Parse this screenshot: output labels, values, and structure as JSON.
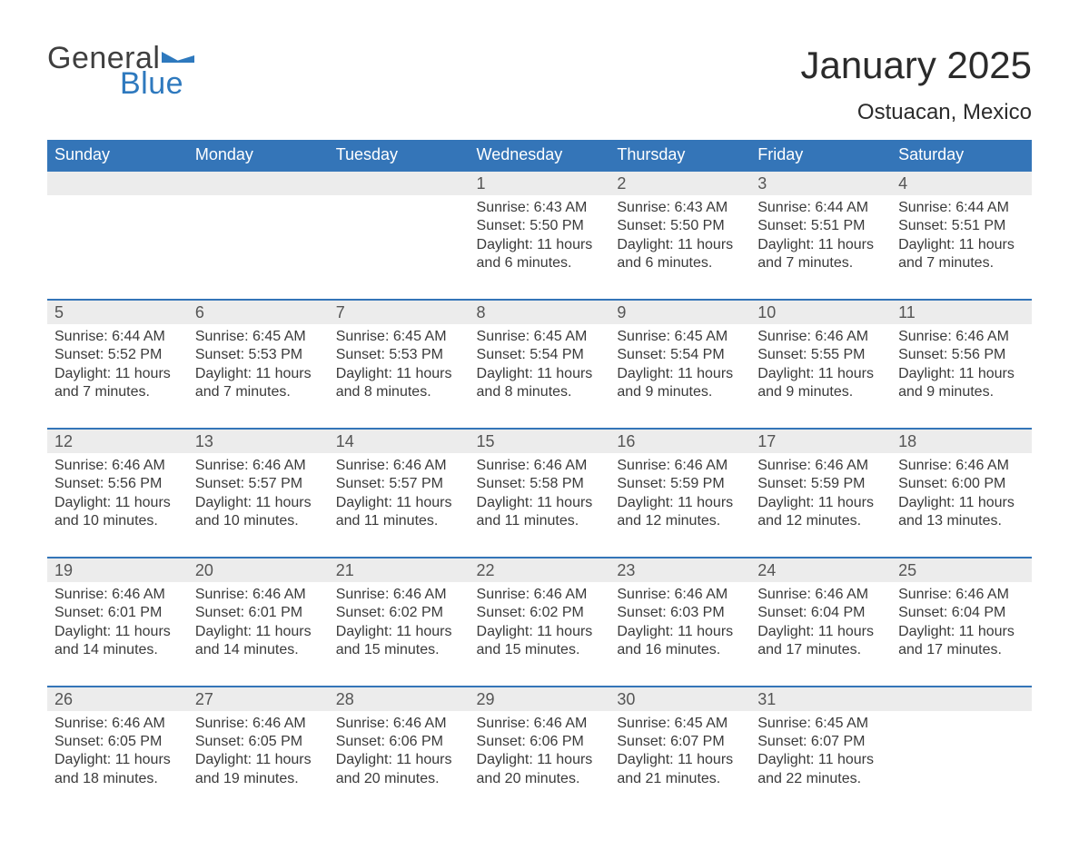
{
  "logo": {
    "text1": "General",
    "text2": "Blue",
    "flag_color": "#2e79be",
    "text1_color": "#3f3f3f"
  },
  "title": "January 2025",
  "location": "Ostuacan, Mexico",
  "colors": {
    "header_bg": "#3475b8",
    "header_text": "#ffffff",
    "week_border": "#3475b8",
    "daynum_bg": "#ececec",
    "body_text": "#3a3a3a",
    "page_bg": "#ffffff"
  },
  "fonts": {
    "title_size_pt": 32,
    "location_size_pt": 18,
    "header_size_pt": 14,
    "body_size_pt": 12
  },
  "day_headers": [
    "Sunday",
    "Monday",
    "Tuesday",
    "Wednesday",
    "Thursday",
    "Friday",
    "Saturday"
  ],
  "weeks": [
    [
      null,
      null,
      null,
      {
        "n": "1",
        "sunrise": "Sunrise: 6:43 AM",
        "sunset": "Sunset: 5:50 PM",
        "dl1": "Daylight: 11 hours",
        "dl2": "and 6 minutes."
      },
      {
        "n": "2",
        "sunrise": "Sunrise: 6:43 AM",
        "sunset": "Sunset: 5:50 PM",
        "dl1": "Daylight: 11 hours",
        "dl2": "and 6 minutes."
      },
      {
        "n": "3",
        "sunrise": "Sunrise: 6:44 AM",
        "sunset": "Sunset: 5:51 PM",
        "dl1": "Daylight: 11 hours",
        "dl2": "and 7 minutes."
      },
      {
        "n": "4",
        "sunrise": "Sunrise: 6:44 AM",
        "sunset": "Sunset: 5:51 PM",
        "dl1": "Daylight: 11 hours",
        "dl2": "and 7 minutes."
      }
    ],
    [
      {
        "n": "5",
        "sunrise": "Sunrise: 6:44 AM",
        "sunset": "Sunset: 5:52 PM",
        "dl1": "Daylight: 11 hours",
        "dl2": "and 7 minutes."
      },
      {
        "n": "6",
        "sunrise": "Sunrise: 6:45 AM",
        "sunset": "Sunset: 5:53 PM",
        "dl1": "Daylight: 11 hours",
        "dl2": "and 7 minutes."
      },
      {
        "n": "7",
        "sunrise": "Sunrise: 6:45 AM",
        "sunset": "Sunset: 5:53 PM",
        "dl1": "Daylight: 11 hours",
        "dl2": "and 8 minutes."
      },
      {
        "n": "8",
        "sunrise": "Sunrise: 6:45 AM",
        "sunset": "Sunset: 5:54 PM",
        "dl1": "Daylight: 11 hours",
        "dl2": "and 8 minutes."
      },
      {
        "n": "9",
        "sunrise": "Sunrise: 6:45 AM",
        "sunset": "Sunset: 5:54 PM",
        "dl1": "Daylight: 11 hours",
        "dl2": "and 9 minutes."
      },
      {
        "n": "10",
        "sunrise": "Sunrise: 6:46 AM",
        "sunset": "Sunset: 5:55 PM",
        "dl1": "Daylight: 11 hours",
        "dl2": "and 9 minutes."
      },
      {
        "n": "11",
        "sunrise": "Sunrise: 6:46 AM",
        "sunset": "Sunset: 5:56 PM",
        "dl1": "Daylight: 11 hours",
        "dl2": "and 9 minutes."
      }
    ],
    [
      {
        "n": "12",
        "sunrise": "Sunrise: 6:46 AM",
        "sunset": "Sunset: 5:56 PM",
        "dl1": "Daylight: 11 hours",
        "dl2": "and 10 minutes."
      },
      {
        "n": "13",
        "sunrise": "Sunrise: 6:46 AM",
        "sunset": "Sunset: 5:57 PM",
        "dl1": "Daylight: 11 hours",
        "dl2": "and 10 minutes."
      },
      {
        "n": "14",
        "sunrise": "Sunrise: 6:46 AM",
        "sunset": "Sunset: 5:57 PM",
        "dl1": "Daylight: 11 hours",
        "dl2": "and 11 minutes."
      },
      {
        "n": "15",
        "sunrise": "Sunrise: 6:46 AM",
        "sunset": "Sunset: 5:58 PM",
        "dl1": "Daylight: 11 hours",
        "dl2": "and 11 minutes."
      },
      {
        "n": "16",
        "sunrise": "Sunrise: 6:46 AM",
        "sunset": "Sunset: 5:59 PM",
        "dl1": "Daylight: 11 hours",
        "dl2": "and 12 minutes."
      },
      {
        "n": "17",
        "sunrise": "Sunrise: 6:46 AM",
        "sunset": "Sunset: 5:59 PM",
        "dl1": "Daylight: 11 hours",
        "dl2": "and 12 minutes."
      },
      {
        "n": "18",
        "sunrise": "Sunrise: 6:46 AM",
        "sunset": "Sunset: 6:00 PM",
        "dl1": "Daylight: 11 hours",
        "dl2": "and 13 minutes."
      }
    ],
    [
      {
        "n": "19",
        "sunrise": "Sunrise: 6:46 AM",
        "sunset": "Sunset: 6:01 PM",
        "dl1": "Daylight: 11 hours",
        "dl2": "and 14 minutes."
      },
      {
        "n": "20",
        "sunrise": "Sunrise: 6:46 AM",
        "sunset": "Sunset: 6:01 PM",
        "dl1": "Daylight: 11 hours",
        "dl2": "and 14 minutes."
      },
      {
        "n": "21",
        "sunrise": "Sunrise: 6:46 AM",
        "sunset": "Sunset: 6:02 PM",
        "dl1": "Daylight: 11 hours",
        "dl2": "and 15 minutes."
      },
      {
        "n": "22",
        "sunrise": "Sunrise: 6:46 AM",
        "sunset": "Sunset: 6:02 PM",
        "dl1": "Daylight: 11 hours",
        "dl2": "and 15 minutes."
      },
      {
        "n": "23",
        "sunrise": "Sunrise: 6:46 AM",
        "sunset": "Sunset: 6:03 PM",
        "dl1": "Daylight: 11 hours",
        "dl2": "and 16 minutes."
      },
      {
        "n": "24",
        "sunrise": "Sunrise: 6:46 AM",
        "sunset": "Sunset: 6:04 PM",
        "dl1": "Daylight: 11 hours",
        "dl2": "and 17 minutes."
      },
      {
        "n": "25",
        "sunrise": "Sunrise: 6:46 AM",
        "sunset": "Sunset: 6:04 PM",
        "dl1": "Daylight: 11 hours",
        "dl2": "and 17 minutes."
      }
    ],
    [
      {
        "n": "26",
        "sunrise": "Sunrise: 6:46 AM",
        "sunset": "Sunset: 6:05 PM",
        "dl1": "Daylight: 11 hours",
        "dl2": "and 18 minutes."
      },
      {
        "n": "27",
        "sunrise": "Sunrise: 6:46 AM",
        "sunset": "Sunset: 6:05 PM",
        "dl1": "Daylight: 11 hours",
        "dl2": "and 19 minutes."
      },
      {
        "n": "28",
        "sunrise": "Sunrise: 6:46 AM",
        "sunset": "Sunset: 6:06 PM",
        "dl1": "Daylight: 11 hours",
        "dl2": "and 20 minutes."
      },
      {
        "n": "29",
        "sunrise": "Sunrise: 6:46 AM",
        "sunset": "Sunset: 6:06 PM",
        "dl1": "Daylight: 11 hours",
        "dl2": "and 20 minutes."
      },
      {
        "n": "30",
        "sunrise": "Sunrise: 6:45 AM",
        "sunset": "Sunset: 6:07 PM",
        "dl1": "Daylight: 11 hours",
        "dl2": "and 21 minutes."
      },
      {
        "n": "31",
        "sunrise": "Sunrise: 6:45 AM",
        "sunset": "Sunset: 6:07 PM",
        "dl1": "Daylight: 11 hours",
        "dl2": "and 22 minutes."
      },
      null
    ]
  ]
}
